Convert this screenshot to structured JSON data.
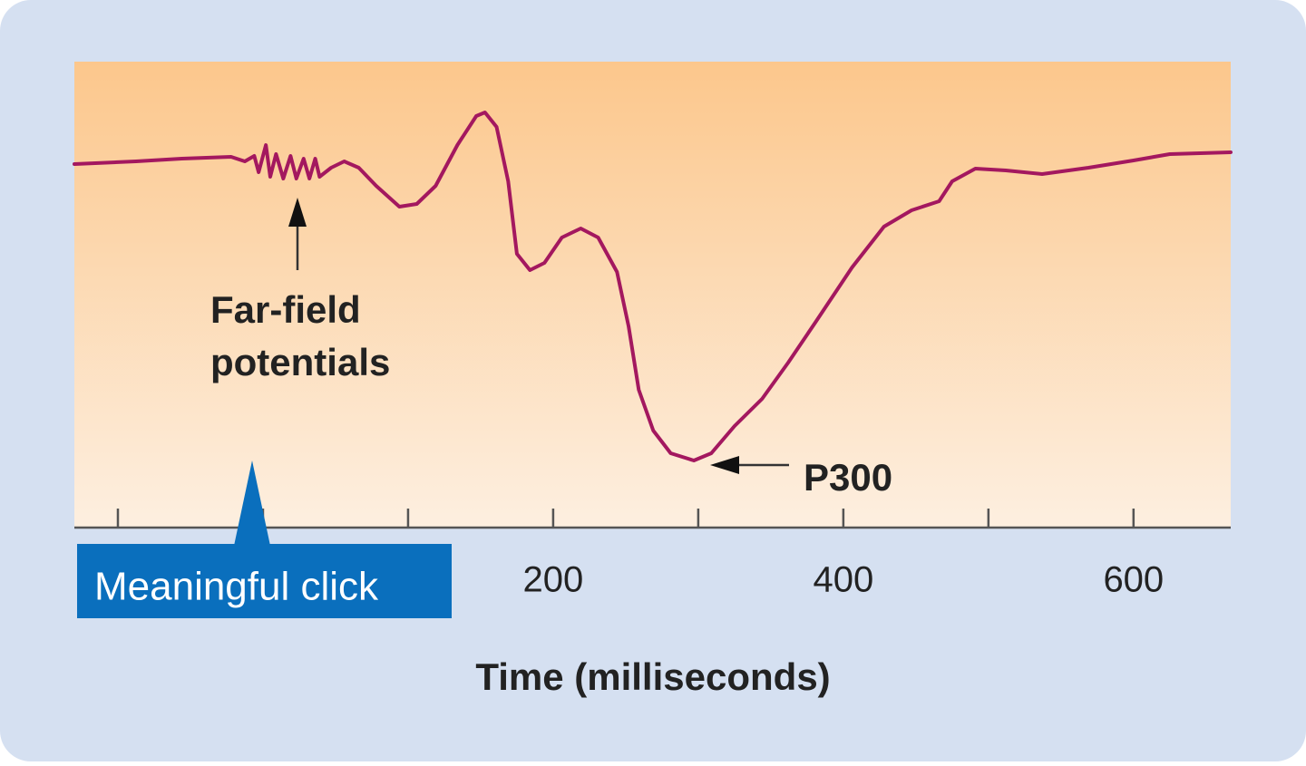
{
  "chart_data": {
    "type": "line",
    "x_label": "Time (milliseconds)",
    "annotations": {
      "click": "Meaningful click",
      "far_field": [
        "Far-field",
        "potentials"
      ],
      "peak": "P300"
    },
    "x": [
      -130,
      -87.5,
      -56,
      -22,
      -12.5,
      -6,
      -3,
      2,
      5,
      9,
      14,
      19,
      23,
      28,
      32,
      36,
      39,
      47,
      56,
      66,
      78,
      94,
      106,
      119,
      134,
      147,
      153,
      161,
      169,
      175,
      184,
      194,
      206,
      219,
      231,
      244,
      252,
      259,
      269,
      281,
      297,
      309,
      325,
      344,
      362,
      381,
      406,
      428,
      447,
      466,
      475,
      491,
      512,
      537,
      569,
      600,
      625,
      667
    ],
    "series": [
      {
        "color": "#a3185f",
        "values": [
          -0.1,
          0.2,
          0.5,
          0.7,
          0.2,
          0.8,
          -1,
          2,
          -1.5,
          1,
          -1.7,
          0.8,
          -1.7,
          0.5,
          -1.7,
          0.5,
          -1.5,
          -0.5,
          0.2,
          -0.5,
          -2.5,
          -4.8,
          -4.5,
          -2.5,
          2,
          5.2,
          5.6,
          4,
          -2,
          -10,
          -11.8,
          -11,
          -8.2,
          -7.2,
          -8.2,
          -12,
          -18,
          -25,
          -29.5,
          -32,
          -32.8,
          -32,
          -29,
          -26,
          -22,
          -17.5,
          -11.5,
          -7,
          -5.2,
          -4.2,
          -2,
          -0.6,
          -0.8,
          -1.2,
          -0.5,
          0.3,
          1,
          1.2
        ]
      }
    ],
    "xlim": [
      -130,
      667
    ],
    "ylim": [
      -40.2,
      11.2
    ],
    "xticks": [
      200,
      400,
      600
    ],
    "minor_xticks": [
      -100,
      0,
      100,
      300,
      500
    ]
  }
}
